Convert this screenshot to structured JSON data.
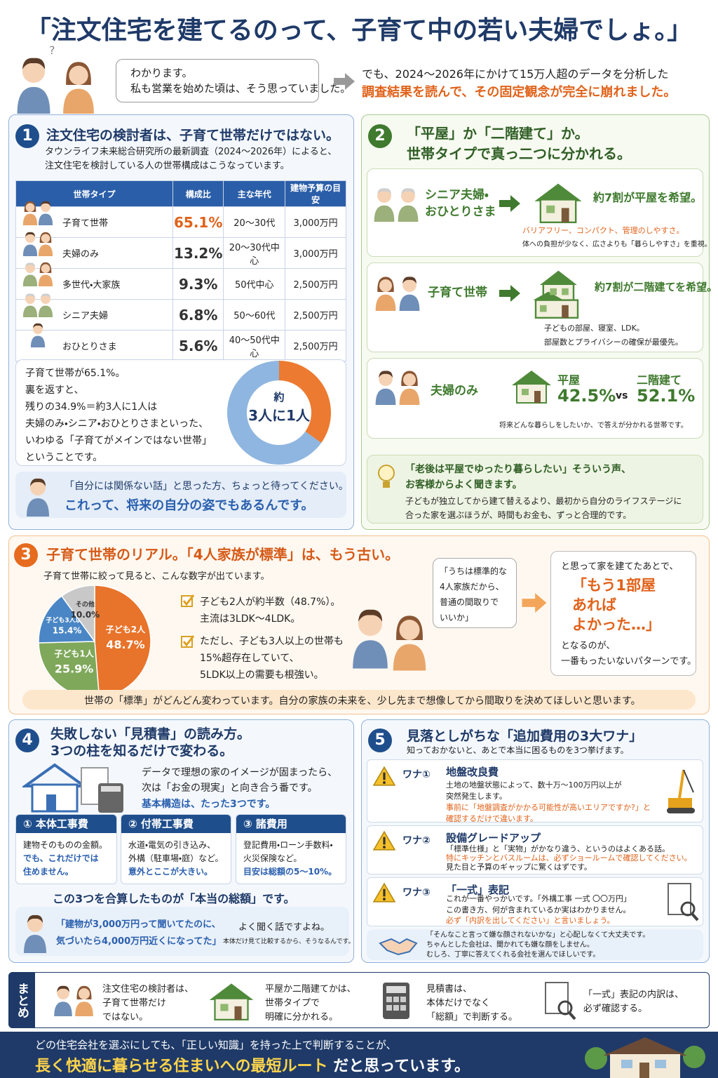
{
  "title": "「注文住宅を建てるのって、子育て中の若い夫婦でしょ。」",
  "intro": {
    "thought": "?",
    "bubble": [
      "わかります。",
      "私も営業を始めた頃は、そう思っていました。"
    ],
    "lead": "でも、2024～2026年にかけて15万人超のデータを分析した",
    "lead_emphasis": "調査結果を読んで、その固定観念が完全に崩れました。"
  },
  "section1": {
    "number": "1",
    "heading": "注文住宅の検討者は、子育て世帯だけではない。",
    "intro": [
      "タウンライフ未来総合研究所の最新調査（2024～2026年）によると、",
      "注文住宅を検討している人の世帯構成はこうなっています。"
    ],
    "table": {
      "headers": [
        "世帯タイプ",
        "構成比",
        "主な年代",
        "建物予算の目安"
      ],
      "rows": [
        [
          "子育て世帯",
          "65.1%",
          "20～30代",
          "3,000万円"
        ],
        [
          "夫婦のみ",
          "13.2%",
          "20～30代中心",
          "3,000万円"
        ],
        [
          "多世代・大家族",
          "9.3%",
          "50代中心",
          "2,500万円"
        ],
        [
          "シニア夫婦",
          "6.8%",
          "50～60代",
          "2,500万円"
        ],
        [
          "おひとりさま",
          "5.6%",
          "40～50代中心",
          "2,500万円"
        ]
      ]
    },
    "summary": [
      "子育て世帯が65.1%。",
      "裏を返すと、",
      "残りの34.9%＝約3人に1人は",
      "夫婦のみ・シニア・おひとりさまといった、",
      "いわゆる「子育てがメインではない世帯」",
      "ということです。"
    ],
    "donut": {
      "values": [
        34.9,
        65.1
      ],
      "colors": [
        "#ec7a30",
        "#8fb6e0"
      ],
      "center": [
        "約",
        "3人に1人"
      ]
    },
    "note": [
      "「自分には関係ない話」と思った方、ちょっと待ってください。",
      "これって、将来の自分の姿でもあるんです。"
    ]
  },
  "section2": {
    "number": "2",
    "heading": [
      "「平屋」か「二階建て」か。",
      "世帯タイプで真っ二つに分かれる。"
    ],
    "cards": [
      {
        "who": [
          "シニア夫婦・",
          "おひとりさま"
        ],
        "result": "約7割が平屋を希望。",
        "detail": [
          "バリアフリー、コンパクト、管理のしやすさ。",
          "体への負担が少なく、広さよりも「暮らしやすさ」を重視。"
        ]
      },
      {
        "who": "子育て世帯",
        "result": "約7割が二階建てを希望。",
        "detail": [
          "子どもの部屋、寝室、LDK。",
          "部屋数とプライバシーの確保が最優先。"
        ]
      },
      {
        "who": "夫婦のみ",
        "options": [
          {
            "label": "平屋",
            "value_label": "42.5%"
          },
          {
            "label": "二階建て",
            "value_label": "52.1%"
          }
        ],
        "vs": "vs",
        "detail": "将来どんな暮らしをしたいか、で答えが分かれる世帯です。"
      }
    ],
    "tip": {
      "heading": [
        "「老後は平屋でゆったり暮らしたい」そういう声、",
        "お客様からよく聞きます。"
      ],
      "body": [
        "子どもが独立してから建て替えるより、最初から自分のライフステージに",
        "合った家を選ぶほうが、時間もお金も、ずっと合理的です。"
      ]
    }
  },
  "section3": {
    "number": "3",
    "heading": "子育て世帯のリアル。「4人家族が標準」は、もう古い。",
    "intro": "子育て世帯に絞って見ると、こんな数字が出ています。",
    "pie": {
      "slices": [
        {
          "label": "子ども2人",
          "value": 48.7,
          "value_label": "48.7%",
          "color": "#e8732a"
        },
        {
          "label": "子ども1人",
          "value": 25.9,
          "value_label": "25.9%",
          "color": "#7fa85a"
        },
        {
          "label": "子ども3人以上",
          "value": 15.4,
          "value_label": "15.4%",
          "color": "#4a86c5"
        },
        {
          "label": "その他",
          "value": 10.0,
          "value_label": "10.0%",
          "color": "#c8c8c8"
        }
      ]
    },
    "checks": [
      [
        "子ども2人が約半数（48.7%）。",
        "主流は3LDK～4LDK。"
      ],
      [
        "ただし、子ども3人以上の世帯も",
        "15%超存在していて、",
        "5LDK以上の需要も根強い。"
      ]
    ],
    "bubble": [
      "「うちは標準的な",
      "4人家族だから、",
      "普通の間取りで",
      "いいか」"
    ],
    "result": {
      "pre": "と思って家を建てたあとで、",
      "quote": [
        "「もう1部屋",
        "あれば",
        "よかった…」"
      ],
      "post": [
        "となるのが、",
        "一番もったいないパターンです。"
      ]
    },
    "footer": "世帯の「標準」がどんどん変わっています。自分の家族の未来を、少し先まで想像してから間取りを決めてほしいと思います。"
  },
  "section4": {
    "number": "4",
    "heading": [
      "失敗しない「見積書」の読み方。",
      "3つの柱を知るだけで変わる。"
    ],
    "intro": [
      "データで理想の家のイメージが固まったら、",
      "次は「お金の現実」と向き合う番です。"
    ],
    "basic": "基本構造は、たった3つです。",
    "pillars": [
      {
        "title": "① 本体工事費",
        "body": [
          "建物そのものの金額。"
        ],
        "emphasis": [
          "でも、これだけでは",
          "住めません。"
        ]
      },
      {
        "title": "② 付帯工事費",
        "body": [
          "水道・電気の引き込み、",
          "外構（駐車場・庭）など。"
        ],
        "emphasis": [
          "意外とここが大きい。"
        ]
      },
      {
        "title": "③ 諸費用",
        "body": [
          "登記費用・ローン手数料・",
          "火災保険など。"
        ],
        "emphasis": [
          "目安は総額の5～10%。"
        ]
      }
    ],
    "total": "この3つを合算したものが「本当の総額」です。",
    "quote": [
      "「建物が3,000万円って聞いてたのに、",
      "気づいたら4,000万円近くになってた」"
    ],
    "comment": [
      "よく聞く話ですよね。",
      "本体だけ見て比較するから、そうなるんです。"
    ]
  },
  "section5": {
    "number": "5",
    "heading": "見落としがちな「追加費用の3大ワナ」",
    "intro": "知っておかないと、あとで本当に困るものを3つ挙げます。",
    "traps": [
      {
        "tag": "ワナ①",
        "title": "地盤改良費",
        "body": [
          "土地の地盤状態によって、数十万～100万円以上が",
          "突然発生します。"
        ],
        "emphasis": [
          "事前に「地盤調査がかかる可能性が高いエリアですか?」と",
          "確認するだけで違います。"
        ]
      },
      {
        "tag": "ワナ②",
        "title": "設備グレードアップ",
        "body": [
          "「標準仕様」と「実物」がかなり違う、というのはよくある話。"
        ],
        "emphasis": [
          "特にキッチンとバスルームは、必ずショールームで確認してください。"
        ],
        "body_after": [
          "見た目と予算のギャップに驚くはずです。"
        ]
      },
      {
        "tag": "ワナ③",
        "title": "「一式」表記",
        "body": [
          "これが一番やっかいです。「外構工事 一式 〇〇万円」",
          "この書き方、何が含まれているか実はわかりません。"
        ],
        "emphasis": [
          "必ず「内訳を出してください」と言いましょう。"
        ]
      }
    ],
    "reassure": [
      "「そんなこと言って嫌な顔されないかな」と心配しなくて大丈夫です。",
      "ちゃんとした会社は、聞かれても嫌な顔をしません。",
      "むしろ、丁寧に答えてくれる会社を選んでほしいです。"
    ]
  },
  "summary": {
    "label": "まとめ",
    "items": [
      [
        "注文住宅の検討者は、",
        "子育て世帯だけ",
        "ではない。"
      ],
      [
        "平屋か二階建てかは、",
        "世帯タイプで",
        "明確に分かれる。"
      ],
      [
        "見積書は、",
        "本体だけでなく",
        "「総額」で判断する。"
      ],
      [
        "「一式」表記の内訳は、",
        "必ず確認する。"
      ]
    ]
  },
  "footer": [
    "どの住宅会社を選ぶにしても、「正しい知識」を持った上で判断することが、",
    "長く快適に暮らせる住まいへの最短ルート",
    "だと思っています。"
  ]
}
